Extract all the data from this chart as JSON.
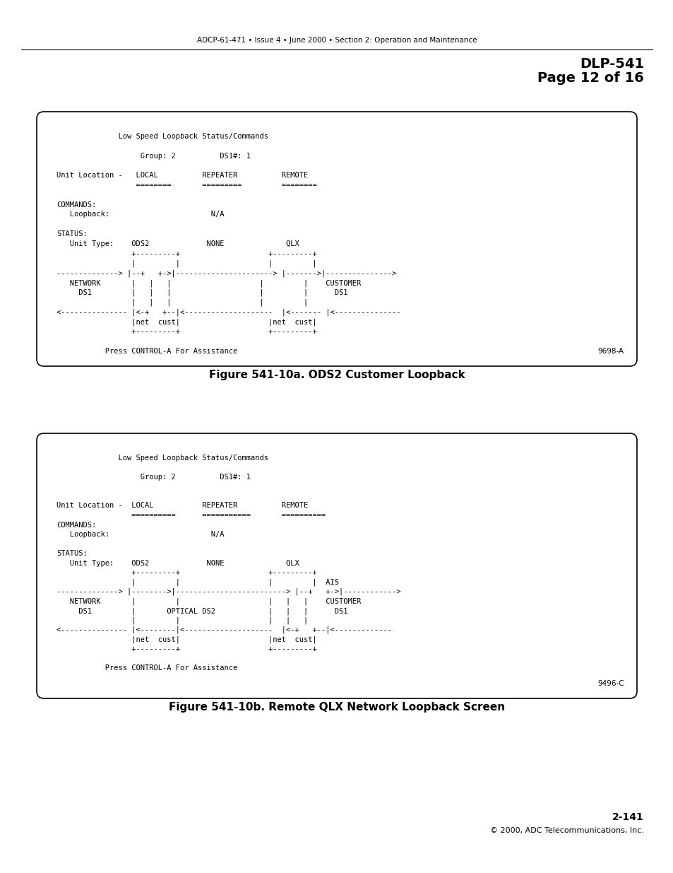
{
  "header_text": "ADCP-61-471 • Issue 4 • June 2000 • Section 2: Operation and Maintenance",
  "dlp_title": "DLP-541",
  "dlp_page": "Page 12 of 16",
  "footer_page": "2-141",
  "footer_copy": "© 2000, ADC Telecommunications, Inc.",
  "fig_a_caption": "Figure 541-10a. ODS2 Customer Loopback",
  "fig_b_caption": "Figure 541-10b. Remote QLX Network Loopback Screen",
  "fig_a_label": "9698-A",
  "fig_b_label": "9496-C",
  "screen1_lines": [
    "               Low Speed Loopback Status/Commands",
    "",
    "                    Group: 2          DS1#: 1",
    "",
    "Unit Location -    LOCAL          REPEATER          REMOTE",
    "                   ========       =========         ========",
    "",
    "COMMANDS:",
    "     Loopback:                       N/A",
    "",
    "STATUS:",
    "     Unit Type:    ODS2             NONE              QLX",
    "                   +---------+                    +---------+",
    "                   |         |                    |         |",
    "---------------> |--+   +->|----------------------> |------->|--------------->",
    "   NETWORK         |   |   |                    |         |    CUSTOMER",
    "     DS1           |   |   |                    |         |      DS1",
    "                   |   |   |                    |         |",
    "<----------------  |<-+   +--|<--------------------  |<--------  |<---------------",
    "                   |net  cust|                    |net  cust|",
    "                   +---------+                    +---------+",
    "",
    "             Press CONTROL-A For Assistance"
  ],
  "screen2_lines": [
    "               Low Speed Loopback Status/Commands",
    "",
    "                    Group: 2          DS1#: 1",
    "",
    "Unit Location -  LOCAL           REPEATER          REMOTE",
    "                 ==========      ===========       ==========",
    "COMMANDS:",
    "     Loopback:                       N/A",
    "",
    "STATUS:",
    "     Unit Type:    ODS2             NONE              QLX",
    "                   +---------+                    +---------+",
    "                   |         |                    |         |  AIS",
    "---------------> |-------->|-------------------------> |--+   +=>|------------->",
    "   NETWORK         |         |                    |   |   |    CUSTOMER",
    "     DS1           |       OPTICAL DS2            |   |   |      DS1",
    "                   |         |                    |   |   |",
    "<----------------  |<--------|<--------------------  |<-+   +--|<--------------",
    "                   |net  cust|                    |net  cust|",
    "                   +---------+                    +---------+",
    "",
    "             Press CONTROL-A For Assistance"
  ]
}
